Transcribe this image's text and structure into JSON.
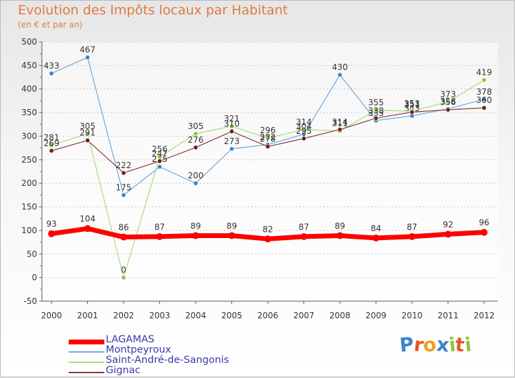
{
  "header": {
    "title": "Evolution des Impôts locaux par Habitant",
    "subtitle": "(en € et par an)"
  },
  "logo": {
    "text": "Proxiti",
    "letters": [
      {
        "ch": "P",
        "color": "#3a84c8"
      },
      {
        "ch": "r",
        "color": "#e8542a"
      },
      {
        "ch": "o",
        "color": "#f0a020"
      },
      {
        "ch": "x",
        "color": "#3a84c8"
      },
      {
        "ch": "i",
        "color": "#8cc63f"
      },
      {
        "ch": "t",
        "color": "#e8542a"
      },
      {
        "ch": "i",
        "color": "#8cc63f"
      }
    ]
  },
  "chart_data": {
    "type": "line",
    "title": "Evolution des Impôts locaux par Habitant",
    "ylabel": "(en € et par an)",
    "xlabel": "",
    "ylim": [
      -50,
      500
    ],
    "yticks": [
      -50,
      0,
      50,
      100,
      150,
      200,
      250,
      300,
      350,
      400,
      450,
      500
    ],
    "categories": [
      "2000",
      "2001",
      "2002",
      "2003",
      "2004",
      "2005",
      "2006",
      "2007",
      "2008",
      "2009",
      "2010",
      "2011",
      "2012"
    ],
    "grid": "horizontal",
    "legend_position": "bottom-left",
    "series": [
      {
        "name": "Montpeyroux",
        "color": "#6fa8dc",
        "marker": "#3a84c8",
        "width": 1.2,
        "values": [
          433,
          467,
          175,
          235,
          200,
          273,
          282,
          304,
          430,
          333,
          343,
          358,
          378
        ],
        "labels": [
          "433",
          "467",
          "175",
          "235",
          "200",
          "273",
          "282",
          "304",
          "430",
          "333",
          "343",
          "358",
          "378"
        ]
      },
      {
        "name": "Saint-André-de-Sangonis",
        "color": "#a9db7c",
        "marker": "#8cc63f",
        "width": 1.2,
        "values": [
          281,
          305,
          0,
          256,
          305,
          321,
          296,
          314,
          311,
          355,
          353,
          373,
          419
        ],
        "labels": [
          "281",
          "305",
          "0",
          "256",
          "305",
          "321",
          "296",
          "314",
          "311",
          "355",
          "353",
          "373",
          "419"
        ]
      },
      {
        "name": "Gignac",
        "color": "#8b3a3a",
        "marker": "#6b2020",
        "width": 1.2,
        "values": [
          269,
          291,
          222,
          247,
          276,
          310,
          278,
          295,
          314,
          338,
          351,
          356,
          360
        ],
        "labels": [
          "269",
          "291",
          "222",
          "247",
          "276",
          "310",
          "278",
          "295",
          "314",
          "338",
          "351",
          "356",
          "360"
        ]
      },
      {
        "name": "LAGAMAS",
        "color": "#ff0000",
        "marker": "#ff0000",
        "width": 7,
        "values": [
          93,
          104,
          86,
          87,
          89,
          89,
          82,
          87,
          89,
          84,
          87,
          92,
          96
        ],
        "labels": [
          "93",
          "104",
          "86",
          "87",
          "89",
          "89",
          "82",
          "87",
          "89",
          "84",
          "87",
          "92",
          "96"
        ]
      }
    ],
    "legend": [
      "LAGAMAS",
      "Montpeyroux",
      "Saint-André-de-Sangonis",
      "Gignac"
    ]
  }
}
